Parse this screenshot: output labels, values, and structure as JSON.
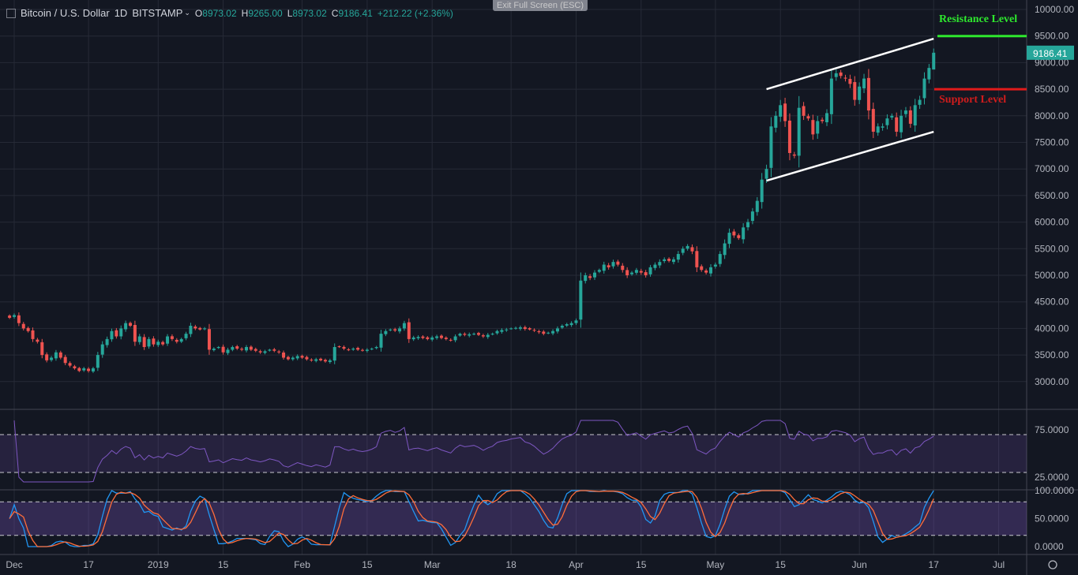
{
  "header": {
    "symbol": "Bitcoin / U.S. Dollar",
    "interval": "1D",
    "exchange": "BITSTAMP",
    "o_label": "O",
    "o": "8973.02",
    "h_label": "H",
    "h": "9265.00",
    "l_label": "L",
    "l": "8973.02",
    "c_label": "C",
    "c": "9186.41",
    "change": "+212.22 (+2.36%)",
    "exit_fullscreen": "Exit Full Screen (ESC)"
  },
  "colors": {
    "up": "#26a69a",
    "down": "#ef5350",
    "background": "#131722",
    "resistance": "#2ee82e",
    "support": "#e01b1b",
    "rsi": "#7e57c2",
    "stoch_k": "#2196f3",
    "stoch_d": "#ff6d3a"
  },
  "annotations": {
    "resistance_label": "Resistance Level",
    "resistance_value": 9500,
    "support_label": "Support Level",
    "support_value": 8500,
    "channel_upper": [
      [
        "May 11",
        8500
      ],
      [
        "Jun 17",
        9450
      ]
    ],
    "channel_lower": [
      [
        "May 11",
        6780
      ],
      [
        "Jun 17",
        7700
      ]
    ]
  },
  "chart_data": [
    {
      "type": "candlestick",
      "title": "Bitcoin / U.S. Dollar 1D BITSTAMP",
      "last_date": "Jun 17 2019",
      "last_price_label": "9186.41",
      "ylim": [
        2700,
        10100
      ],
      "y_ticks": [
        "10000.00",
        "9500.00",
        "9000.00",
        "8500.00",
        "8000.00",
        "7500.00",
        "7000.00",
        "6500.00",
        "6000.00",
        "5500.00",
        "5000.00",
        "4500.00",
        "4000.00",
        "3500.00",
        "3000.00"
      ],
      "x_ticks": [
        "Dec",
        "17",
        "2019",
        "15",
        "Feb",
        "15",
        "Mar",
        "18",
        "Apr",
        "15",
        "May",
        "15",
        "Jun",
        "17",
        "Jul"
      ],
      "closes": [
        4200,
        4250,
        4100,
        4000,
        3950,
        3800,
        3750,
        3500,
        3400,
        3450,
        3550,
        3450,
        3350,
        3300,
        3250,
        3200,
        3250,
        3200,
        3250,
        3500,
        3700,
        3800,
        3950,
        3850,
        4000,
        4100,
        4050,
        3750,
        3850,
        3650,
        3800,
        3700,
        3750,
        3700,
        3850,
        3800,
        3750,
        3800,
        3900,
        4050,
        4000,
        3980,
        4000,
        3600,
        3620,
        3650,
        3550,
        3600,
        3650,
        3620,
        3600,
        3650,
        3600,
        3580,
        3550,
        3570,
        3600,
        3580,
        3550,
        3450,
        3420,
        3450,
        3480,
        3450,
        3420,
        3400,
        3420,
        3400,
        3380,
        3400,
        3650,
        3650,
        3620,
        3600,
        3620,
        3600,
        3590,
        3600,
        3620,
        3650,
        3900,
        3950,
        3980,
        3960,
        4000,
        4100,
        3800,
        3830,
        3840,
        3820,
        3800,
        3830,
        3850,
        3820,
        3800,
        3780,
        3850,
        3900,
        3880,
        3890,
        3900,
        3880,
        3850,
        3880,
        3900,
        3950,
        3970,
        3980,
        4000,
        4010,
        4020,
        3990,
        3980,
        3960,
        3930,
        3900,
        3920,
        3950,
        4000,
        4050,
        4080,
        4100,
        4150,
        4900,
        5000,
        4950,
        5050,
        5100,
        5200,
        5150,
        5250,
        5200,
        5100,
        5000,
        5050,
        5100,
        5050,
        5000,
        5150,
        5200,
        5250,
        5300,
        5270,
        5300,
        5400,
        5500,
        5550,
        5450,
        5150,
        5100,
        5050,
        5150,
        5200,
        5400,
        5600,
        5800,
        5750,
        5700,
        5900,
        6000,
        6200,
        6400,
        6800,
        7000,
        7800,
        8000,
        8200,
        7900,
        7300,
        7250,
        8150,
        8000,
        7950,
        7650,
        7900,
        7900,
        8050,
        8700,
        8800,
        8750,
        8700,
        8600,
        8300,
        8550,
        8700,
        8100,
        7700,
        7800,
        7800,
        7950,
        8000,
        7700,
        8000,
        8100,
        7850,
        8200,
        8300,
        8700,
        8900,
        9186.41
      ]
    },
    {
      "type": "line",
      "pane": "oscillator-1",
      "y_ticks": [
        "75.0000",
        "25.0000"
      ],
      "bands": [
        70,
        30
      ]
    },
    {
      "type": "line",
      "pane": "oscillator-2",
      "y_ticks": [
        "100.0000",
        "50.0000",
        "0.0000"
      ],
      "bands": [
        80,
        20
      ]
    }
  ]
}
